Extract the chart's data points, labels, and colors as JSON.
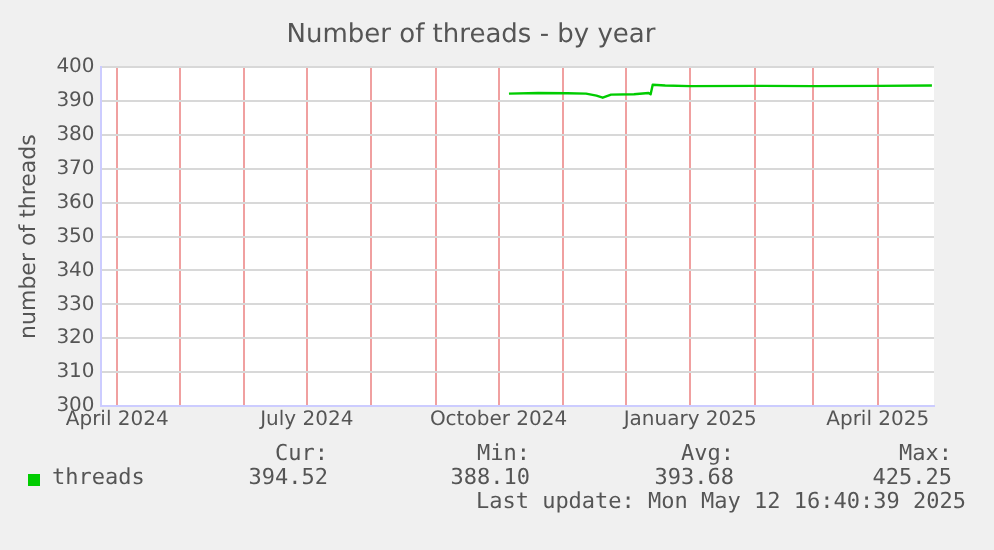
{
  "chart_data": {
    "type": "line",
    "title": "Number of threads - by year",
    "ylabel": "number of threads",
    "x": [
      "2024-10-06",
      "2024-10-20",
      "2024-11-03",
      "2024-11-12",
      "2024-11-17",
      "2024-11-20",
      "2024-11-24",
      "2024-12-05",
      "2024-12-12",
      "2024-12-13",
      "2024-12-14",
      "2024-12-20",
      "2025-01-01",
      "2025-02-01",
      "2025-03-01",
      "2025-04-01",
      "2025-04-27"
    ],
    "series": [
      {
        "name": "threads",
        "color": "#00cc00",
        "values": [
          392.2,
          392.4,
          392.3,
          392.2,
          391.6,
          391.0,
          391.9,
          392.0,
          392.4,
          392.0,
          394.8,
          394.6,
          394.4,
          394.5,
          394.4,
          394.5,
          394.6
        ]
      }
    ],
    "xlim": [
      "2024-03-24",
      "2025-04-28"
    ],
    "xticks": [
      {
        "value": "2024-04-01",
        "label": "April 2024"
      },
      {
        "value": "2024-05-01",
        "label": null
      },
      {
        "value": "2024-06-01",
        "label": null
      },
      {
        "value": "2024-07-01",
        "label": "July 2024"
      },
      {
        "value": "2024-08-01",
        "label": null
      },
      {
        "value": "2024-09-01",
        "label": null
      },
      {
        "value": "2024-10-01",
        "label": "October 2024"
      },
      {
        "value": "2024-11-01",
        "label": null
      },
      {
        "value": "2024-12-01",
        "label": null
      },
      {
        "value": "2025-01-01",
        "label": "January 2025"
      },
      {
        "value": "2025-02-01",
        "label": null
      },
      {
        "value": "2025-03-01",
        "label": null
      },
      {
        "value": "2025-04-01",
        "label": "April 2025"
      }
    ],
    "ylim": [
      300,
      400
    ],
    "yticks": [
      300,
      310,
      320,
      330,
      340,
      350,
      360,
      370,
      380,
      390,
      400
    ],
    "grid": true,
    "legend": "bottom left",
    "line_style": "solid",
    "marker": "none",
    "annotations": [
      "Cur:",
      "Min:",
      "Avg:",
      "Max:",
      "394.52",
      "388.10",
      "393.68",
      "425.25",
      "Last update: Mon May 12 16:40:39 2025"
    ]
  }
}
